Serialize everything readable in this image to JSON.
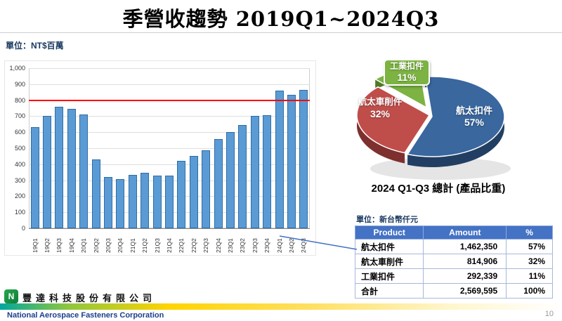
{
  "slide": {
    "title": "季營收趨勢 2019Q1~2024Q3",
    "page_number": "10"
  },
  "chart_data": [
    {
      "type": "bar",
      "unit_label": "單位：NT$百萬",
      "categories": [
        "19Q1",
        "19Q2",
        "19Q3",
        "19Q4",
        "20Q1",
        "20Q2",
        "20Q3",
        "20Q4",
        "21Q1",
        "21Q2",
        "21Q3",
        "21Q4",
        "22Q1",
        "22Q2",
        "22Q3",
        "22Q4",
        "23Q1",
        "23Q2",
        "23Q3",
        "23Q4",
        "24Q1",
        "24Q2",
        "24Q3"
      ],
      "values": [
        630,
        700,
        760,
        745,
        710,
        430,
        320,
        305,
        335,
        345,
        330,
        330,
        420,
        450,
        485,
        555,
        600,
        645,
        700,
        705,
        860,
        835,
        865
      ],
      "ylim": [
        0,
        1000
      ],
      "ytick_step": 100,
      "ref_line": {
        "value": 800,
        "color": "#FF0000"
      },
      "bar_color": "#5B9BD5",
      "bar_border": "#2E6DA4",
      "grid": true,
      "legend": "none"
    },
    {
      "type": "pie",
      "title": "2024 Q1-Q3 總計 (產品比重)",
      "start_angle_deg": -45,
      "slices": [
        {
          "label": "工業扣件",
          "pct": 11,
          "pct_label": "11%",
          "color": "#7CB342",
          "dark": "#4F7A26"
        },
        {
          "label": "航太扣件",
          "pct": 57,
          "pct_label": "57%",
          "color": "#39679E",
          "dark": "#223F63"
        },
        {
          "label": "航太車削件",
          "pct": 32,
          "pct_label": "32%",
          "color": "#BF4E4B",
          "dark": "#7E302E"
        }
      ]
    },
    {
      "type": "table",
      "unit_label": "單位：新台幣仟元",
      "headers": [
        "Product",
        "Amount",
        "%"
      ],
      "rows": [
        [
          "航太扣件",
          "1,462,350",
          "57%"
        ],
        [
          "航太車削件",
          "814,906",
          "32%"
        ],
        [
          "工業扣件",
          "292,339",
          "11%"
        ],
        [
          "合計",
          "2,569,595",
          "100%"
        ]
      ],
      "header_bg": "#4472C4"
    }
  ],
  "footer": {
    "company_cn": "豐達科技股份有限公司",
    "company_en": "National Aerospace Fasteners Corporation",
    "logo_text": "N"
  }
}
